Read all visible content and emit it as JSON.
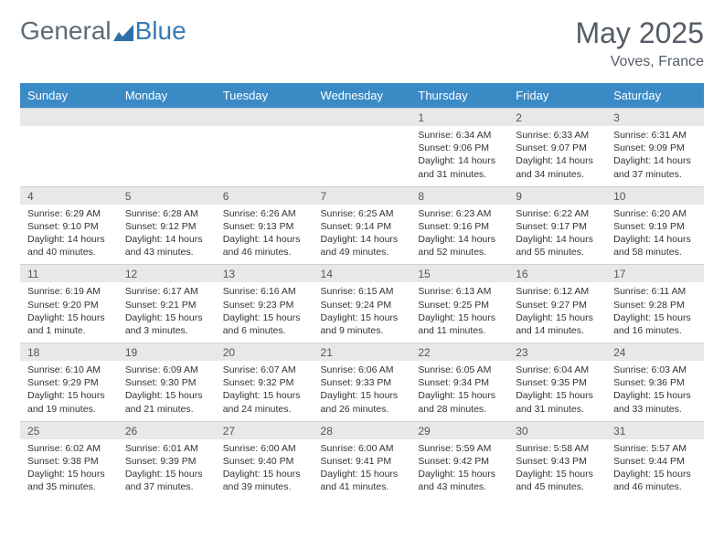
{
  "brand": {
    "part1": "General",
    "part2": "Blue"
  },
  "title": "May 2025",
  "location": "Voves, France",
  "colors": {
    "header_bg": "#3a8ac6",
    "header_text": "#ffffff",
    "numrow_bg": "#e8e8e8",
    "body_text": "#333333",
    "title_text": "#555c66"
  },
  "day_headers": [
    "Sunday",
    "Monday",
    "Tuesday",
    "Wednesday",
    "Thursday",
    "Friday",
    "Saturday"
  ],
  "weeks": [
    {
      "days": [
        {
          "n": "",
          "sunrise": "",
          "sunset": "",
          "daylight1": "",
          "daylight2": ""
        },
        {
          "n": "",
          "sunrise": "",
          "sunset": "",
          "daylight1": "",
          "daylight2": ""
        },
        {
          "n": "",
          "sunrise": "",
          "sunset": "",
          "daylight1": "",
          "daylight2": ""
        },
        {
          "n": "",
          "sunrise": "",
          "sunset": "",
          "daylight1": "",
          "daylight2": ""
        },
        {
          "n": "1",
          "sunrise": "Sunrise: 6:34 AM",
          "sunset": "Sunset: 9:06 PM",
          "daylight1": "Daylight: 14 hours",
          "daylight2": "and 31 minutes."
        },
        {
          "n": "2",
          "sunrise": "Sunrise: 6:33 AM",
          "sunset": "Sunset: 9:07 PM",
          "daylight1": "Daylight: 14 hours",
          "daylight2": "and 34 minutes."
        },
        {
          "n": "3",
          "sunrise": "Sunrise: 6:31 AM",
          "sunset": "Sunset: 9:09 PM",
          "daylight1": "Daylight: 14 hours",
          "daylight2": "and 37 minutes."
        }
      ]
    },
    {
      "days": [
        {
          "n": "4",
          "sunrise": "Sunrise: 6:29 AM",
          "sunset": "Sunset: 9:10 PM",
          "daylight1": "Daylight: 14 hours",
          "daylight2": "and 40 minutes."
        },
        {
          "n": "5",
          "sunrise": "Sunrise: 6:28 AM",
          "sunset": "Sunset: 9:12 PM",
          "daylight1": "Daylight: 14 hours",
          "daylight2": "and 43 minutes."
        },
        {
          "n": "6",
          "sunrise": "Sunrise: 6:26 AM",
          "sunset": "Sunset: 9:13 PM",
          "daylight1": "Daylight: 14 hours",
          "daylight2": "and 46 minutes."
        },
        {
          "n": "7",
          "sunrise": "Sunrise: 6:25 AM",
          "sunset": "Sunset: 9:14 PM",
          "daylight1": "Daylight: 14 hours",
          "daylight2": "and 49 minutes."
        },
        {
          "n": "8",
          "sunrise": "Sunrise: 6:23 AM",
          "sunset": "Sunset: 9:16 PM",
          "daylight1": "Daylight: 14 hours",
          "daylight2": "and 52 minutes."
        },
        {
          "n": "9",
          "sunrise": "Sunrise: 6:22 AM",
          "sunset": "Sunset: 9:17 PM",
          "daylight1": "Daylight: 14 hours",
          "daylight2": "and 55 minutes."
        },
        {
          "n": "10",
          "sunrise": "Sunrise: 6:20 AM",
          "sunset": "Sunset: 9:19 PM",
          "daylight1": "Daylight: 14 hours",
          "daylight2": "and 58 minutes."
        }
      ]
    },
    {
      "days": [
        {
          "n": "11",
          "sunrise": "Sunrise: 6:19 AM",
          "sunset": "Sunset: 9:20 PM",
          "daylight1": "Daylight: 15 hours",
          "daylight2": "and 1 minute."
        },
        {
          "n": "12",
          "sunrise": "Sunrise: 6:17 AM",
          "sunset": "Sunset: 9:21 PM",
          "daylight1": "Daylight: 15 hours",
          "daylight2": "and 3 minutes."
        },
        {
          "n": "13",
          "sunrise": "Sunrise: 6:16 AM",
          "sunset": "Sunset: 9:23 PM",
          "daylight1": "Daylight: 15 hours",
          "daylight2": "and 6 minutes."
        },
        {
          "n": "14",
          "sunrise": "Sunrise: 6:15 AM",
          "sunset": "Sunset: 9:24 PM",
          "daylight1": "Daylight: 15 hours",
          "daylight2": "and 9 minutes."
        },
        {
          "n": "15",
          "sunrise": "Sunrise: 6:13 AM",
          "sunset": "Sunset: 9:25 PM",
          "daylight1": "Daylight: 15 hours",
          "daylight2": "and 11 minutes."
        },
        {
          "n": "16",
          "sunrise": "Sunrise: 6:12 AM",
          "sunset": "Sunset: 9:27 PM",
          "daylight1": "Daylight: 15 hours",
          "daylight2": "and 14 minutes."
        },
        {
          "n": "17",
          "sunrise": "Sunrise: 6:11 AM",
          "sunset": "Sunset: 9:28 PM",
          "daylight1": "Daylight: 15 hours",
          "daylight2": "and 16 minutes."
        }
      ]
    },
    {
      "days": [
        {
          "n": "18",
          "sunrise": "Sunrise: 6:10 AM",
          "sunset": "Sunset: 9:29 PM",
          "daylight1": "Daylight: 15 hours",
          "daylight2": "and 19 minutes."
        },
        {
          "n": "19",
          "sunrise": "Sunrise: 6:09 AM",
          "sunset": "Sunset: 9:30 PM",
          "daylight1": "Daylight: 15 hours",
          "daylight2": "and 21 minutes."
        },
        {
          "n": "20",
          "sunrise": "Sunrise: 6:07 AM",
          "sunset": "Sunset: 9:32 PM",
          "daylight1": "Daylight: 15 hours",
          "daylight2": "and 24 minutes."
        },
        {
          "n": "21",
          "sunrise": "Sunrise: 6:06 AM",
          "sunset": "Sunset: 9:33 PM",
          "daylight1": "Daylight: 15 hours",
          "daylight2": "and 26 minutes."
        },
        {
          "n": "22",
          "sunrise": "Sunrise: 6:05 AM",
          "sunset": "Sunset: 9:34 PM",
          "daylight1": "Daylight: 15 hours",
          "daylight2": "and 28 minutes."
        },
        {
          "n": "23",
          "sunrise": "Sunrise: 6:04 AM",
          "sunset": "Sunset: 9:35 PM",
          "daylight1": "Daylight: 15 hours",
          "daylight2": "and 31 minutes."
        },
        {
          "n": "24",
          "sunrise": "Sunrise: 6:03 AM",
          "sunset": "Sunset: 9:36 PM",
          "daylight1": "Daylight: 15 hours",
          "daylight2": "and 33 minutes."
        }
      ]
    },
    {
      "days": [
        {
          "n": "25",
          "sunrise": "Sunrise: 6:02 AM",
          "sunset": "Sunset: 9:38 PM",
          "daylight1": "Daylight: 15 hours",
          "daylight2": "and 35 minutes."
        },
        {
          "n": "26",
          "sunrise": "Sunrise: 6:01 AM",
          "sunset": "Sunset: 9:39 PM",
          "daylight1": "Daylight: 15 hours",
          "daylight2": "and 37 minutes."
        },
        {
          "n": "27",
          "sunrise": "Sunrise: 6:00 AM",
          "sunset": "Sunset: 9:40 PM",
          "daylight1": "Daylight: 15 hours",
          "daylight2": "and 39 minutes."
        },
        {
          "n": "28",
          "sunrise": "Sunrise: 6:00 AM",
          "sunset": "Sunset: 9:41 PM",
          "daylight1": "Daylight: 15 hours",
          "daylight2": "and 41 minutes."
        },
        {
          "n": "29",
          "sunrise": "Sunrise: 5:59 AM",
          "sunset": "Sunset: 9:42 PM",
          "daylight1": "Daylight: 15 hours",
          "daylight2": "and 43 minutes."
        },
        {
          "n": "30",
          "sunrise": "Sunrise: 5:58 AM",
          "sunset": "Sunset: 9:43 PM",
          "daylight1": "Daylight: 15 hours",
          "daylight2": "and 45 minutes."
        },
        {
          "n": "31",
          "sunrise": "Sunrise: 5:57 AM",
          "sunset": "Sunset: 9:44 PM",
          "daylight1": "Daylight: 15 hours",
          "daylight2": "and 46 minutes."
        }
      ]
    }
  ]
}
